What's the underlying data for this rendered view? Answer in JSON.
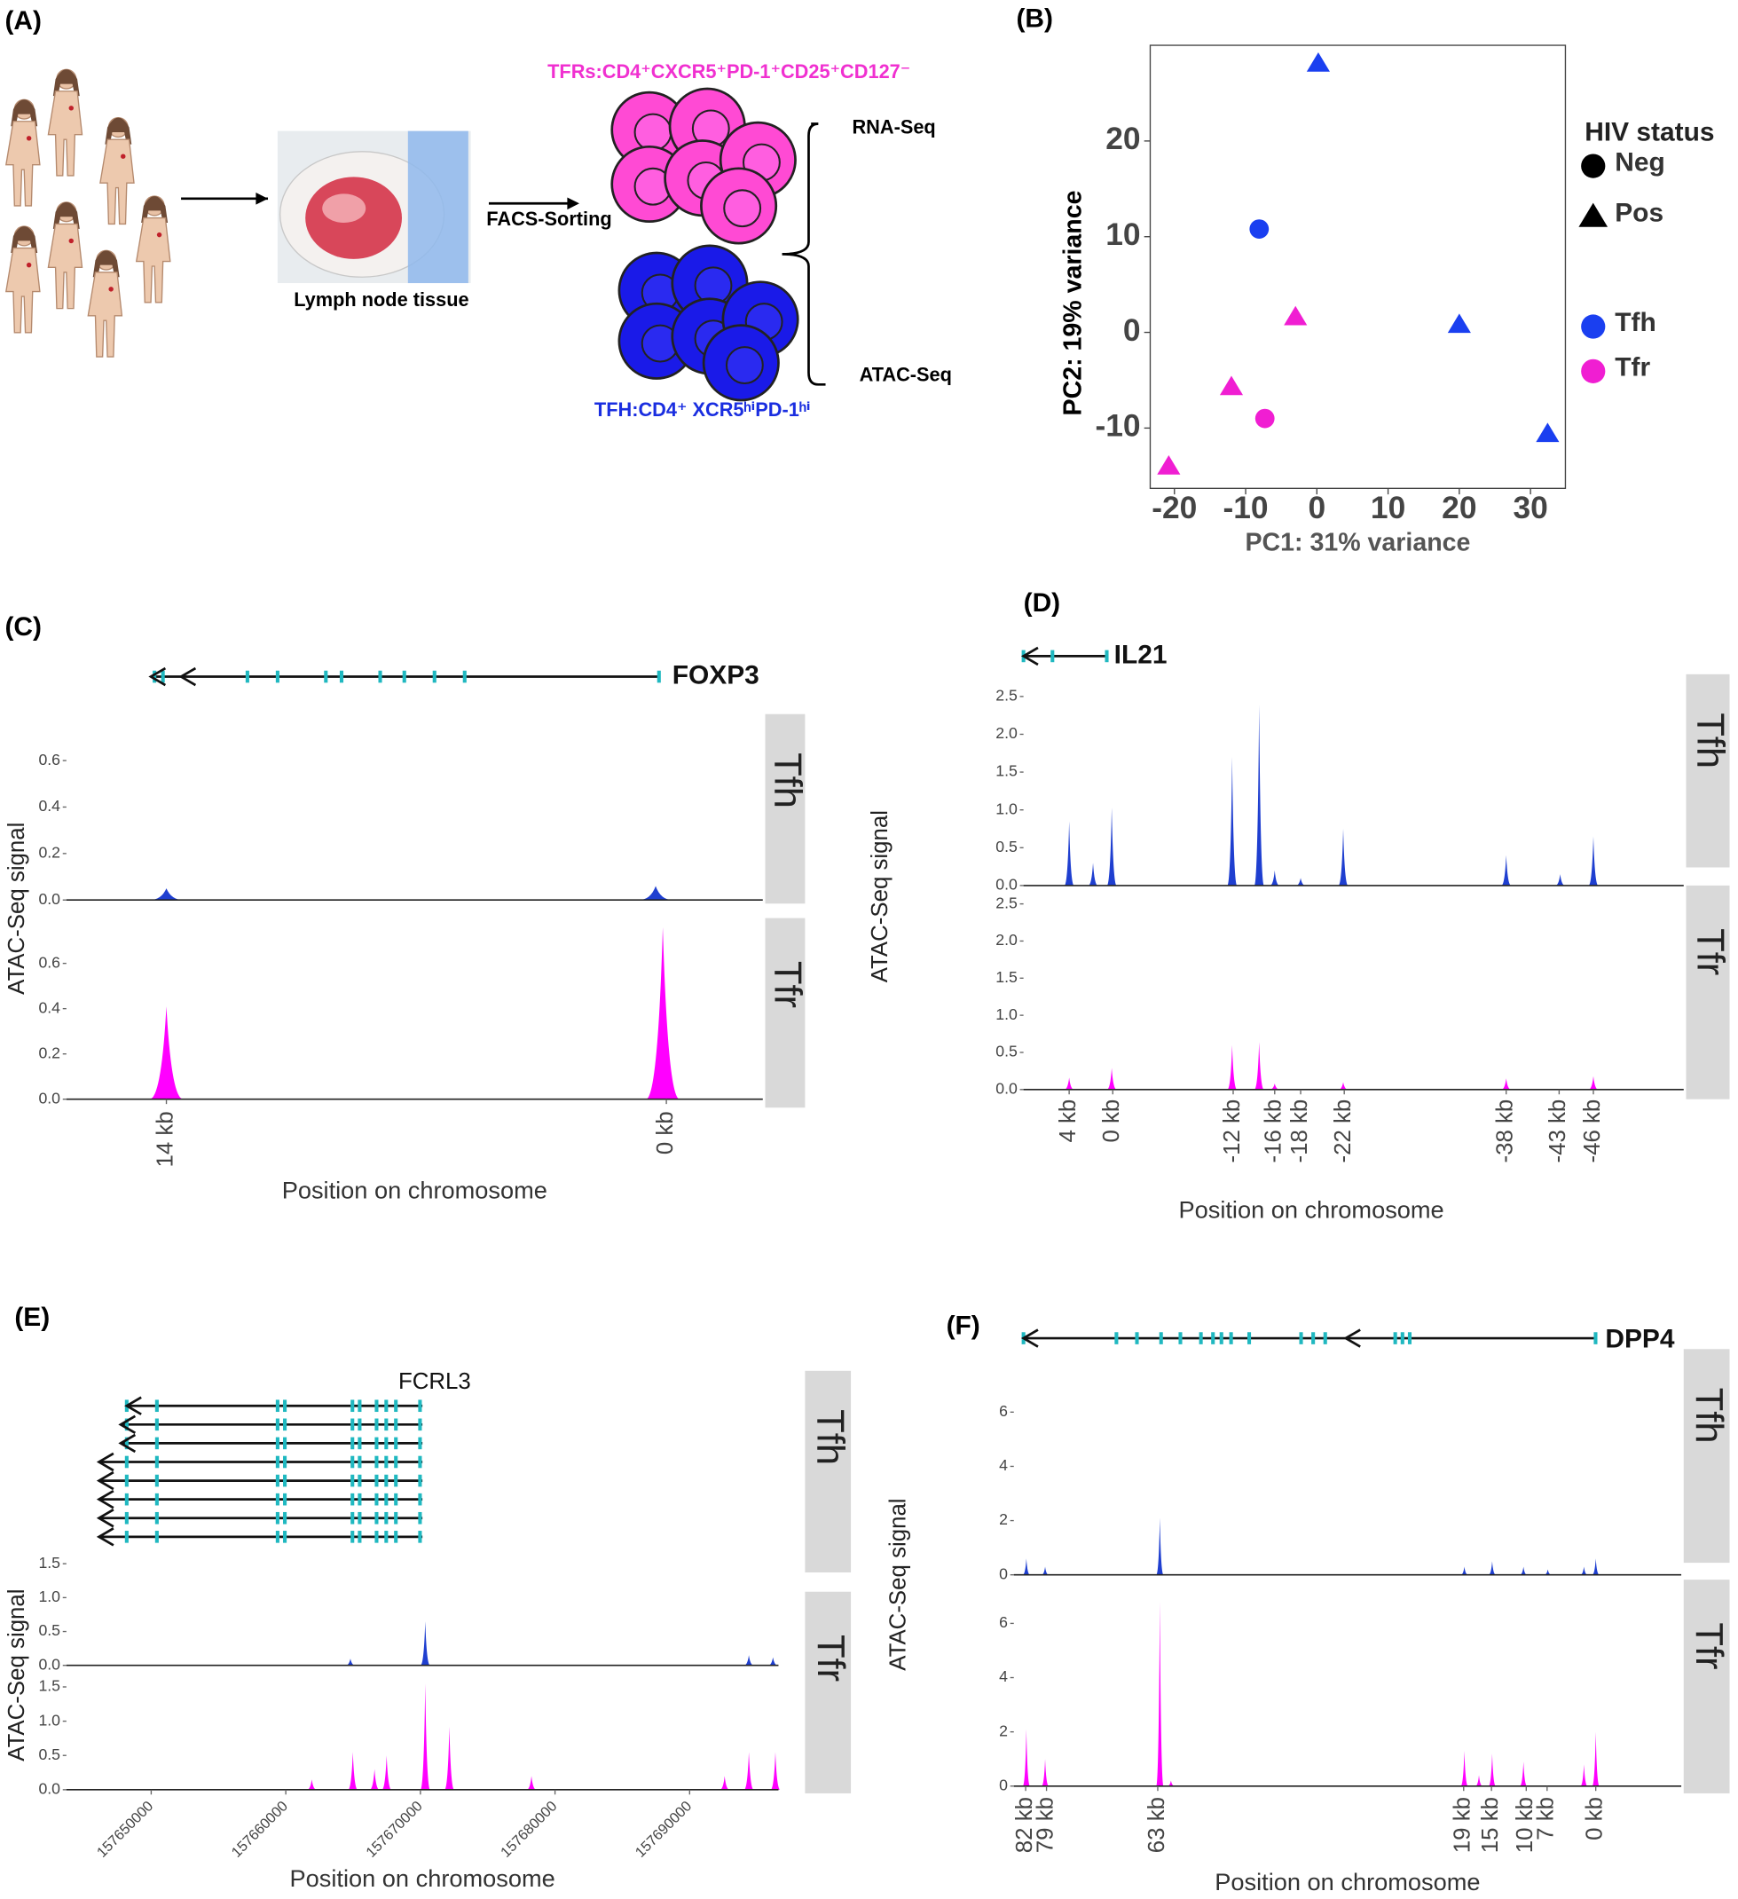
{
  "panel_labels": [
    "(A)",
    "(B)",
    "(C)",
    "(D)",
    "(E)",
    "(F)"
  ],
  "diagram": {
    "tfr_label": "TFRs:CD4⁺CXCR5⁺PD-1⁺CD25⁺CD127⁻",
    "tfh_label": "TFH:CD4⁺ XCR5ʰⁱPD-1ʰⁱ",
    "tissue_label": "Lymph node tissue",
    "sorting_label": "FACS-Sorting",
    "rna_label": "RNA-Seq",
    "atac_label": "ATAC-Seq"
  },
  "chart_data": [
    {
      "type": "scatter",
      "x_label": "PC1: 31% variance",
      "y_label": "PC2: 19% variance",
      "xlim": [
        -23.4,
        34.9
      ],
      "xticks": [
        -20,
        -10,
        0,
        10,
        20,
        30
      ],
      "ylim": [
        -16.3,
        30
      ],
      "yticks": [
        -10,
        0,
        10,
        20
      ],
      "shape_legend": {
        "title": "HIV status",
        "items": [
          "Neg",
          "Pos"
        ]
      },
      "color_legend": {
        "items": [
          "Tfh",
          "Tfr"
        ],
        "colors": [
          "#1a3ff0",
          "#f01ed2"
        ]
      },
      "x": [
        0.2,
        20,
        32.4,
        -8.1,
        -3,
        -12,
        -20.8,
        -7.3
      ],
      "y": [
        28.1,
        0.8,
        -10.6,
        10.8,
        1.6,
        -5.7,
        -14,
        -9
      ],
      "hiv_status": [
        "Pos",
        "Pos",
        "Pos",
        "Neg",
        "Pos",
        "Pos",
        "Pos",
        "Neg"
      ],
      "cell_type": [
        "Tfh",
        "Tfh",
        "Tfh",
        "Tfh",
        "Tfr",
        "Tfr",
        "Tfr",
        "Tfr"
      ]
    },
    {
      "type": "track",
      "gene": "FOXP3",
      "x_label": "Position on chromosome",
      "y_label": "ATAC-Seq signal",
      "xlim": [
        16.8,
        -2.7
      ],
      "xticks": [
        {
          "value": 14,
          "label": "14 kb"
        },
        {
          "value": 0,
          "label": "0 kb"
        }
      ],
      "ylim": [
        0,
        0.8
      ],
      "yticks": [
        {
          "value": 0,
          "label": "0.0"
        },
        0.2,
        0.4,
        0.6
      ],
      "tracks": [
        {
          "name": "Tfh",
          "color": "#1f3fd0",
          "x": [
            14,
            0.3
          ],
          "values": [
            0.05,
            0.06
          ]
        },
        {
          "name": "Tfr",
          "color": "#ff00ff",
          "x": [
            14,
            0.1
          ],
          "values": [
            0.41,
            0.76
          ]
        }
      ]
    },
    {
      "type": "track",
      "gene": "IL21",
      "x_label": "Position on chromosome",
      "y_label": "ATAC-Seq signal",
      "xlim": [
        8.6,
        -55
      ],
      "xticks": [
        {
          "value": 4.2,
          "label": "4 kb"
        },
        {
          "value": 0,
          "label": "0 kb"
        },
        {
          "value": -11.6,
          "label": "-12 kb"
        },
        {
          "value": -15.6,
          "label": "-16 kb"
        },
        {
          "value": -18.1,
          "label": "-18 kb"
        },
        {
          "value": -22.3,
          "label": "-22 kb"
        },
        {
          "value": -37.9,
          "label": "-38 kb"
        },
        {
          "value": -43.0,
          "label": "-43 kb"
        },
        {
          "value": -46.3,
          "label": "-46 kb"
        }
      ],
      "ylim": [
        0,
        2.65
      ],
      "yticks": [
        {
          "value": 0,
          "label": "0.0"
        },
        0.5,
        {
          "value": 1,
          "label": "1.0"
        },
        1.5,
        {
          "value": 2,
          "label": "2.0"
        },
        2.5
      ],
      "tracks": [
        {
          "name": "Tfh",
          "color": "#1f3fd0",
          "x": [
            4.2,
            1.9,
            0.1,
            -11.5,
            -14.1,
            -15.6,
            -18.1,
            -22.2,
            -37.9,
            -43.1,
            -46.3
          ],
          "values": [
            0.85,
            0.3,
            1.03,
            1.7,
            2.39,
            0.2,
            0.1,
            0.75,
            0.4,
            0.15,
            0.65
          ]
        },
        {
          "name": "Tfr",
          "color": "#ff00ff",
          "x": [
            4.2,
            0.1,
            -11.5,
            -14.1,
            -15.6,
            -22.2,
            -37.9,
            -46.3
          ],
          "values": [
            0.16,
            0.29,
            0.6,
            0.64,
            0.08,
            0.1,
            0.15,
            0.18
          ]
        }
      ]
    },
    {
      "type": "track",
      "gene": "FCRL3",
      "x_label": "Position on chromosome",
      "y_label": "ATAC-Seq signal",
      "xlim": [
        157643700,
        157696600
      ],
      "xticks": [
        157650000,
        157660000,
        157670000,
        157680000,
        157690000
      ],
      "ylim": [
        0,
        1.55
      ],
      "yticks": [
        {
          "value": 0,
          "label": "0.0"
        },
        0.5,
        {
          "value": 1,
          "label": "1.0"
        },
        1.5
      ],
      "tracks": [
        {
          "name": "Tfh",
          "color": "#1f3fd0",
          "x": [
            157664800,
            157670359,
            157694400,
            157696190
          ],
          "values": [
            0.1,
            0.65,
            0.15,
            0.12
          ]
        },
        {
          "name": "Tfr",
          "color": "#ff00ff",
          "x": [
            157661930,
            157664980,
            157666590,
            157667490,
            157670359,
            157672150,
            157678250,
            157692600,
            157694400,
            157696370
          ],
          "values": [
            0.15,
            0.55,
            0.3,
            0.5,
            1.55,
            0.92,
            0.2,
            0.2,
            0.55,
            0.55
          ]
        }
      ]
    },
    {
      "type": "track",
      "gene": "DPP4",
      "x_label": "Position on chromosome",
      "y_label": "ATAC-Seq signal",
      "xlim": [
        83.7,
        -12.3
      ],
      "xticks": [
        {
          "value": 82,
          "label": "82 kb"
        },
        {
          "value": 79,
          "label": "79 kb"
        },
        {
          "value": 63,
          "label": "63 kb"
        },
        {
          "value": 19,
          "label": "19 kb"
        },
        {
          "value": 15,
          "label": "15 kb"
        },
        {
          "value": 10,
          "label": "10 kb"
        },
        {
          "value": 7,
          "label": "7 kb"
        },
        {
          "value": 0,
          "label": "0 kb"
        }
      ],
      "ylim": [
        0,
        6.9
      ],
      "yticks": [
        0,
        2,
        4,
        6
      ],
      "tracks": [
        {
          "name": "Tfh",
          "color": "#1f3fd0",
          "x": [
            81.9,
            79.2,
            62.7,
            18.9,
            14.9,
            10.4,
            6.9,
            1.7,
            0
          ],
          "values": [
            0.6,
            0.3,
            2.1,
            0.3,
            0.5,
            0.3,
            0.2,
            0.3,
            0.6
          ]
        },
        {
          "name": "Tfr",
          "color": "#ff00ff",
          "x": [
            81.9,
            79.2,
            62.7,
            61.1,
            18.9,
            16.8,
            14.9,
            10.4,
            1.7,
            0
          ],
          "values": [
            2.1,
            1.0,
            6.8,
            0.2,
            1.3,
            0.4,
            1.2,
            0.9,
            0.8,
            2.0
          ]
        }
      ]
    }
  ]
}
